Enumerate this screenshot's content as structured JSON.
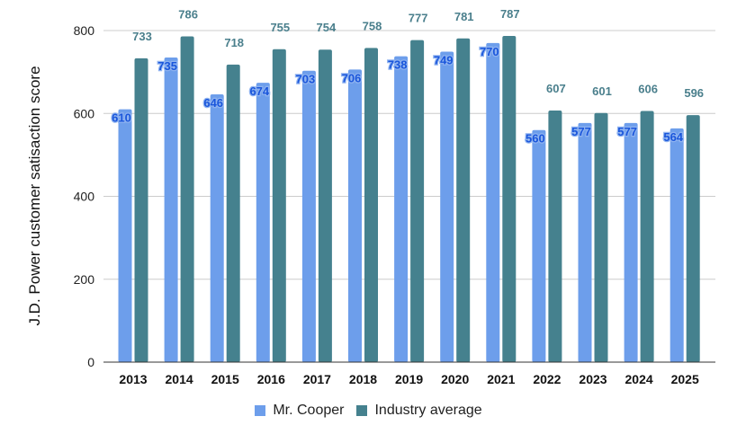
{
  "chart_data": {
    "type": "bar",
    "title": "",
    "xlabel": "",
    "ylabel": "J.D. Power customer satisaction score",
    "ylim": [
      0,
      800
    ],
    "yticks": [
      0,
      200,
      400,
      600,
      800
    ],
    "grid": true,
    "legend_position": "bottom",
    "categories": [
      "2013",
      "2014",
      "2015",
      "2016",
      "2017",
      "2018",
      "2019",
      "2020",
      "2021",
      "2022",
      "2023",
      "2024",
      "2025"
    ],
    "series": [
      {
        "name": "Mr. Cooper",
        "color": "#6d9eeb",
        "label_color": "#1a56db",
        "values": [
          610,
          735,
          646,
          674,
          703,
          706,
          738,
          749,
          770,
          560,
          577,
          577,
          564
        ]
      },
      {
        "name": "Industry average",
        "color": "#45818e",
        "label_color": "#4a7f8c",
        "values": [
          733,
          786,
          718,
          755,
          754,
          758,
          777,
          781,
          787,
          607,
          601,
          606,
          596
        ]
      }
    ]
  }
}
